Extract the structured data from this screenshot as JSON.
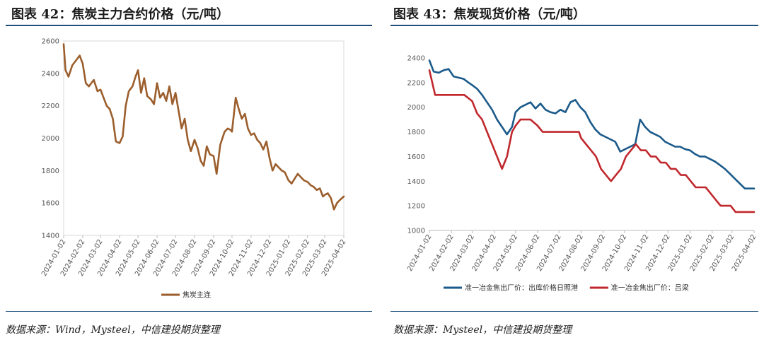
{
  "left_panel": {
    "title": "图表 42：焦炭主力合约价格（元/吨）",
    "source": "数据来源：Wind，Mysteel，中信建投期货整理"
  },
  "right_panel": {
    "title": "图表 43：焦炭现货价格（元/吨）",
    "source": "数据来源：Mysteel，中信建投期货整理"
  },
  "colors": {
    "brown": "#9b5e2c",
    "blue": "#1b5a8a",
    "red": "#c0282d",
    "rule": "#1f4e79"
  },
  "chart_data": [
    {
      "type": "line",
      "title": "",
      "ylim": [
        1400,
        2600
      ],
      "yticks": [
        1400,
        1600,
        1800,
        2000,
        2200,
        2400,
        2600
      ],
      "xlim": [
        "2024-01-02",
        "2025-04-02"
      ],
      "x_tick_labels": [
        "2024-01-02",
        "2024-02-02",
        "2024-03-02",
        "2024-04-02",
        "2024-05-02",
        "2024-06-02",
        "2024-07-02",
        "2024-08-02",
        "2024-09-02",
        "2024-10-02",
        "2024-11-02",
        "2024-12-02",
        "2025-01-02",
        "2025-02-02",
        "2025-03-02",
        "2025-04-02"
      ],
      "legend_position": "bottom",
      "series": [
        {
          "name": "焦炭主连",
          "color": "#9b5e2c",
          "x": [
            "2024-01-02",
            "2024-01-05",
            "2024-01-10",
            "2024-01-16",
            "2024-01-22",
            "2024-01-28",
            "2024-02-02",
            "2024-02-07",
            "2024-02-12",
            "2024-02-20",
            "2024-02-26",
            "2024-03-02",
            "2024-03-07",
            "2024-03-12",
            "2024-03-17",
            "2024-03-22",
            "2024-03-27",
            "2024-04-02",
            "2024-04-07",
            "2024-04-12",
            "2024-04-17",
            "2024-04-23",
            "2024-04-28",
            "2024-05-02",
            "2024-05-07",
            "2024-05-12",
            "2024-05-17",
            "2024-05-23",
            "2024-05-28",
            "2024-06-02",
            "2024-06-07",
            "2024-06-12",
            "2024-06-17",
            "2024-06-22",
            "2024-06-27",
            "2024-07-02",
            "2024-07-07",
            "2024-07-12",
            "2024-07-17",
            "2024-07-22",
            "2024-07-27",
            "2024-08-02",
            "2024-08-07",
            "2024-08-12",
            "2024-08-17",
            "2024-08-22",
            "2024-08-27",
            "2024-09-02",
            "2024-09-07",
            "2024-09-13",
            "2024-09-20",
            "2024-09-25",
            "2024-09-30",
            "2024-10-02",
            "2024-10-08",
            "2024-10-13",
            "2024-10-18",
            "2024-10-23",
            "2024-10-28",
            "2024-11-02",
            "2024-11-07",
            "2024-11-12",
            "2024-11-17",
            "2024-11-22",
            "2024-11-27",
            "2024-12-02",
            "2024-12-07",
            "2024-12-12",
            "2024-12-17",
            "2024-12-22",
            "2024-12-27",
            "2025-01-02",
            "2025-01-07",
            "2025-01-12",
            "2025-01-17",
            "2025-01-22",
            "2025-01-27",
            "2025-02-02",
            "2025-02-07",
            "2025-02-12",
            "2025-02-17",
            "2025-02-22",
            "2025-02-27",
            "2025-03-02",
            "2025-03-07",
            "2025-03-12",
            "2025-03-17",
            "2025-03-22",
            "2025-03-27",
            "2025-04-02"
          ],
          "values": [
            2580,
            2420,
            2380,
            2450,
            2480,
            2510,
            2460,
            2340,
            2320,
            2360,
            2290,
            2300,
            2250,
            2200,
            2180,
            2120,
            1980,
            1970,
            2010,
            2200,
            2290,
            2320,
            2380,
            2420,
            2280,
            2370,
            2260,
            2240,
            2210,
            2340,
            2250,
            2280,
            2230,
            2320,
            2210,
            2280,
            2170,
            2060,
            2120,
            1990,
            1920,
            1990,
            1940,
            1860,
            1830,
            1950,
            1900,
            1890,
            1780,
            1960,
            2040,
            2060,
            2050,
            2040,
            2250,
            2180,
            2120,
            2150,
            2060,
            2020,
            2030,
            1990,
            1970,
            1930,
            1980,
            1880,
            1800,
            1840,
            1820,
            1800,
            1790,
            1740,
            1720,
            1750,
            1780,
            1760,
            1740,
            1730,
            1710,
            1700,
            1680,
            1690,
            1640,
            1650,
            1660,
            1630,
            1560,
            1600,
            1620,
            1640
          ]
        }
      ]
    },
    {
      "type": "line",
      "title": "",
      "ylim": [
        1000,
        2400
      ],
      "yticks": [
        1000,
        1200,
        1400,
        1600,
        1800,
        2000,
        2200,
        2400
      ],
      "xlim": [
        "2024-01-02",
        "2025-04-02"
      ],
      "x_tick_labels": [
        "2024-01-02",
        "2024-02-02",
        "2024-03-02",
        "2024-04-02",
        "2024-05-02",
        "2024-06-02",
        "2024-07-02",
        "2024-08-02",
        "2024-09-02",
        "2024-10-02",
        "2024-11-02",
        "2024-12-02",
        "2025-01-02",
        "2025-02-02",
        "2025-03-02",
        "2025-04-02"
      ],
      "legend_position": "bottom",
      "series": [
        {
          "name": "准一冶金焦出厂价：出库价格日照港",
          "color": "#1b5a8a",
          "x": [
            "2024-01-02",
            "2024-01-08",
            "2024-01-15",
            "2024-01-22",
            "2024-01-29",
            "2024-02-05",
            "2024-02-12",
            "2024-02-19",
            "2024-02-26",
            "2024-03-02",
            "2024-03-09",
            "2024-03-16",
            "2024-03-23",
            "2024-03-30",
            "2024-04-06",
            "2024-04-13",
            "2024-04-20",
            "2024-04-27",
            "2024-05-02",
            "2024-05-09",
            "2024-05-16",
            "2024-05-23",
            "2024-05-30",
            "2024-06-06",
            "2024-06-13",
            "2024-06-20",
            "2024-06-27",
            "2024-07-04",
            "2024-07-11",
            "2024-07-18",
            "2024-07-25",
            "2024-08-01",
            "2024-08-08",
            "2024-08-15",
            "2024-08-22",
            "2024-08-29",
            "2024-09-05",
            "2024-09-12",
            "2024-09-19",
            "2024-09-26",
            "2024-10-03",
            "2024-10-10",
            "2024-10-17",
            "2024-10-24",
            "2024-10-31",
            "2024-11-07",
            "2024-11-14",
            "2024-11-21",
            "2024-11-28",
            "2024-12-05",
            "2024-12-12",
            "2024-12-19",
            "2024-12-26",
            "2025-01-02",
            "2025-01-09",
            "2025-01-16",
            "2025-01-23",
            "2025-01-30",
            "2025-02-06",
            "2025-02-13",
            "2025-02-20",
            "2025-02-27",
            "2025-03-06",
            "2025-03-13",
            "2025-03-20",
            "2025-03-27",
            "2025-04-02"
          ],
          "values": [
            2380,
            2290,
            2280,
            2300,
            2310,
            2250,
            2240,
            2230,
            2200,
            2180,
            2150,
            2100,
            2040,
            1980,
            1900,
            1840,
            1780,
            1840,
            1960,
            2000,
            2020,
            2040,
            1990,
            2030,
            1980,
            1960,
            1950,
            1980,
            1960,
            2040,
            2060,
            2000,
            1960,
            1880,
            1820,
            1780,
            1760,
            1740,
            1720,
            1640,
            1660,
            1680,
            1700,
            1900,
            1840,
            1800,
            1780,
            1760,
            1720,
            1700,
            1680,
            1680,
            1660,
            1650,
            1620,
            1600,
            1600,
            1580,
            1560,
            1530,
            1500,
            1460,
            1420,
            1380,
            1340,
            1340,
            1340
          ]
        },
        {
          "name": "准一冶金焦出厂价：吕梁",
          "color": "#c0282d",
          "x": [
            "2024-01-02",
            "2024-01-10",
            "2024-02-02",
            "2024-02-20",
            "2024-03-02",
            "2024-03-09",
            "2024-03-16",
            "2024-03-23",
            "2024-03-30",
            "2024-04-06",
            "2024-04-13",
            "2024-04-20",
            "2024-04-27",
            "2024-05-02",
            "2024-05-09",
            "2024-05-23",
            "2024-06-02",
            "2024-06-09",
            "2024-06-23",
            "2024-07-02",
            "2024-07-16",
            "2024-07-30",
            "2024-08-02",
            "2024-08-09",
            "2024-08-16",
            "2024-08-23",
            "2024-08-30",
            "2024-09-06",
            "2024-09-13",
            "2024-09-20",
            "2024-09-27",
            "2024-10-04",
            "2024-10-11",
            "2024-10-18",
            "2024-10-25",
            "2024-11-01",
            "2024-11-08",
            "2024-11-15",
            "2024-11-22",
            "2024-11-29",
            "2024-12-06",
            "2024-12-13",
            "2024-12-20",
            "2024-12-27",
            "2025-01-03",
            "2025-01-10",
            "2025-01-17",
            "2025-01-24",
            "2025-01-31",
            "2025-02-07",
            "2025-02-14",
            "2025-02-21",
            "2025-02-28",
            "2025-03-07",
            "2025-03-14",
            "2025-03-21",
            "2025-03-28",
            "2025-04-02"
          ],
          "values": [
            2300,
            2100,
            2100,
            2100,
            2050,
            1950,
            1900,
            1800,
            1700,
            1600,
            1500,
            1600,
            1800,
            1850,
            1900,
            1900,
            1850,
            1800,
            1800,
            1800,
            1800,
            1800,
            1750,
            1700,
            1650,
            1600,
            1500,
            1450,
            1400,
            1450,
            1500,
            1600,
            1650,
            1700,
            1650,
            1650,
            1600,
            1600,
            1550,
            1550,
            1500,
            1500,
            1450,
            1450,
            1400,
            1350,
            1350,
            1350,
            1300,
            1250,
            1200,
            1200,
            1200,
            1150,
            1150,
            1150,
            1150,
            1150
          ]
        }
      ]
    }
  ]
}
